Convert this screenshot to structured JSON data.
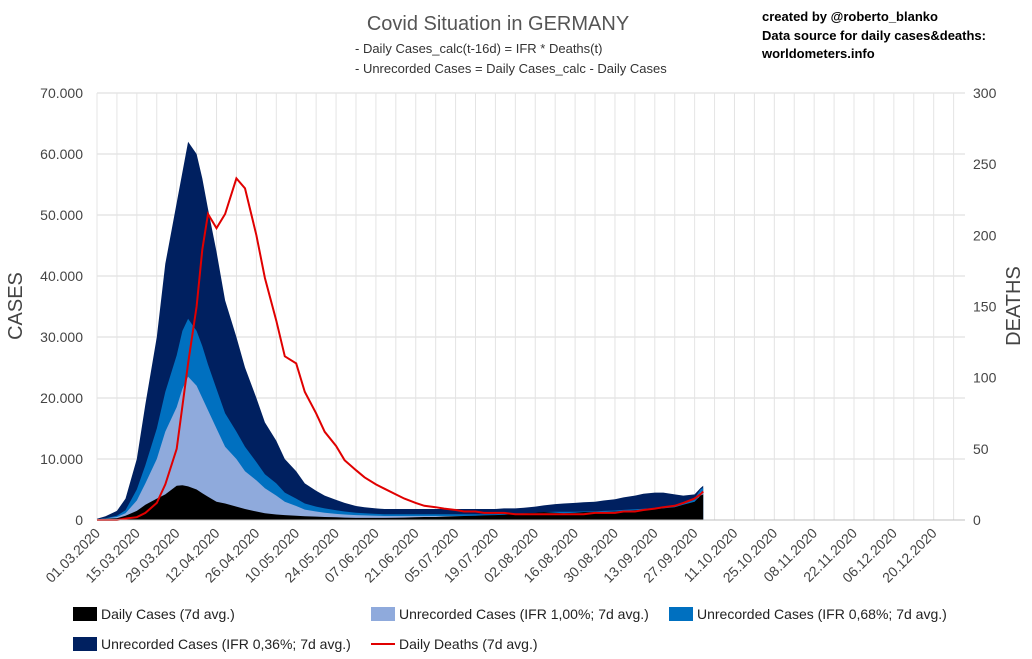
{
  "chart_data": {
    "type": "area",
    "title": "Covid Situation in GERMANY",
    "subtitle_lines": [
      "- Daily Cases_calc(t-16d) = IFR * Deaths(t)",
      "- Unrecorded Cases = Daily Cases_calc - Daily Cases"
    ],
    "credits": [
      "created by @roberto_blanko",
      "Data source for daily cases&deaths:",
      "worldometers.info"
    ],
    "ylabel": "CASES",
    "y2label": "DEATHS",
    "ylim": [
      0,
      70000
    ],
    "y2lim": [
      0,
      300
    ],
    "y_ticks": [
      "0",
      "10.000",
      "20.000",
      "30.000",
      "40.000",
      "50.000",
      "60.000",
      "70.000"
    ],
    "y2_ticks": [
      "0",
      "50",
      "100",
      "150",
      "200",
      "250",
      "300"
    ],
    "x_range_days": [
      0,
      305
    ],
    "x_ticks": [
      "01.03.2020",
      "15.03.2020",
      "29.03.2020",
      "12.04.2020",
      "26.04.2020",
      "10.05.2020",
      "24.05.2020",
      "07.06.2020",
      "21.06.2020",
      "05.07.2020",
      "19.07.2020",
      "02.08.2020",
      "16.08.2020",
      "30.08.2020",
      "13.09.2020",
      "27.09.2020",
      "11.10.2020",
      "25.10.2020",
      "08.11.2020",
      "22.11.2020",
      "06.12.2020",
      "20.12.2020"
    ],
    "x_days": [
      0,
      3,
      7,
      10,
      14,
      17,
      21,
      24,
      28,
      30,
      32,
      35,
      37,
      39,
      42,
      45,
      49,
      52,
      56,
      59,
      63,
      66,
      70,
      73,
      77,
      80,
      84,
      87,
      91,
      94,
      98,
      101,
      105,
      108,
      112,
      115,
      119,
      122,
      126,
      129,
      133,
      136,
      140,
      143,
      147,
      150,
      154,
      157,
      161,
      164,
      168,
      171,
      175,
      178,
      182,
      185,
      189,
      192,
      196,
      199,
      203,
      206,
      210,
      212,
      213
    ],
    "series": [
      {
        "name": "Daily Cases (7d avg.)",
        "color": "#000000",
        "values": [
          100,
          200,
          300,
          700,
          1500,
          2500,
          3500,
          4200,
          5600,
          5700,
          5500,
          5000,
          4400,
          3800,
          3000,
          2700,
          2200,
          1800,
          1400,
          1100,
          900,
          800,
          700,
          600,
          550,
          500,
          450,
          400,
          350,
          350,
          350,
          350,
          380,
          400,
          450,
          500,
          500,
          550,
          600,
          650,
          700,
          750,
          800,
          850,
          1000,
          1100,
          1200,
          1300,
          1200,
          1100,
          1200,
          1300,
          1300,
          1300,
          1400,
          1500,
          1600,
          1700,
          1800,
          1900,
          2100,
          2500,
          3000,
          4000,
          4200
        ]
      },
      {
        "name": "Unrecorded Cases (IFR 1,00%; 7d avg.)",
        "color": "#8faadc",
        "values": [
          100,
          250,
          500,
          1100,
          3200,
          6000,
          10000,
          14500,
          18500,
          21500,
          23500,
          22000,
          20000,
          18000,
          15000,
          12000,
          10000,
          8000,
          6500,
          5200,
          4000,
          3000,
          2300,
          1700,
          1400,
          1200,
          1000,
          900,
          800,
          750,
          700,
          650,
          650,
          650,
          650,
          650,
          650,
          650,
          650,
          650,
          650,
          650,
          650,
          700,
          700,
          750,
          800,
          850,
          900,
          900,
          900,
          950,
          950,
          1000,
          1050,
          1100,
          1200,
          1250,
          1300,
          1400,
          1600,
          2000,
          2500,
          4500,
          4800
        ]
      },
      {
        "name": "Unrecorded Cases (IFR 0,68%; 7d avg.)",
        "color": "#0070c0",
        "values": [
          120,
          300,
          700,
          1600,
          5000,
          9000,
          15000,
          21000,
          27000,
          31000,
          33000,
          31000,
          28500,
          25500,
          21500,
          17500,
          14500,
          12000,
          9500,
          7500,
          6000,
          4500,
          3500,
          2700,
          2200,
          1900,
          1600,
          1400,
          1200,
          1100,
          1000,
          950,
          950,
          950,
          950,
          950,
          950,
          950,
          950,
          950,
          950,
          950,
          950,
          1000,
          1000,
          1100,
          1200,
          1300,
          1350,
          1350,
          1350,
          1400,
          1400,
          1500,
          1550,
          1650,
          1750,
          1850,
          1950,
          2100,
          2400,
          2900,
          3500,
          5000,
          5300
        ]
      },
      {
        "name": "Unrecorded Cases (IFR 0,36%; 7d avg.)",
        "color": "#002060",
        "values": [
          200,
          600,
          1500,
          3500,
          10000,
          19000,
          30000,
          42000,
          52000,
          57000,
          62000,
          60000,
          56000,
          51000,
          44000,
          36000,
          30000,
          25000,
          20000,
          16000,
          13000,
          10000,
          8000,
          6000,
          4800,
          4000,
          3300,
          2800,
          2300,
          2100,
          1900,
          1800,
          1800,
          1800,
          1800,
          1800,
          1800,
          1800,
          1800,
          1800,
          1800,
          1800,
          1800,
          1900,
          1900,
          2000,
          2200,
          2400,
          2600,
          2700,
          2800,
          2900,
          3000,
          3200,
          3400,
          3700,
          4000,
          4300,
          4500,
          4500,
          4200,
          4000,
          4200,
          5200,
          5600
        ]
      },
      {
        "name": "Daily Deaths (7d avg.)",
        "color": "#e00000",
        "axis": "right",
        "values": [
          0,
          0,
          0,
          1,
          2,
          5,
          12,
          25,
          50,
          80,
          110,
          150,
          190,
          215,
          205,
          215,
          240,
          233,
          200,
          170,
          140,
          115,
          110,
          90,
          75,
          62,
          52,
          42,
          35,
          30,
          25,
          22,
          18,
          15,
          12,
          10,
          9,
          8,
          7,
          6,
          6,
          5,
          5,
          5,
          4,
          4,
          4,
          4,
          4,
          4,
          4,
          4,
          5,
          5,
          5,
          6,
          6,
          7,
          8,
          9,
          10,
          12,
          15,
          18,
          20
        ]
      }
    ]
  }
}
